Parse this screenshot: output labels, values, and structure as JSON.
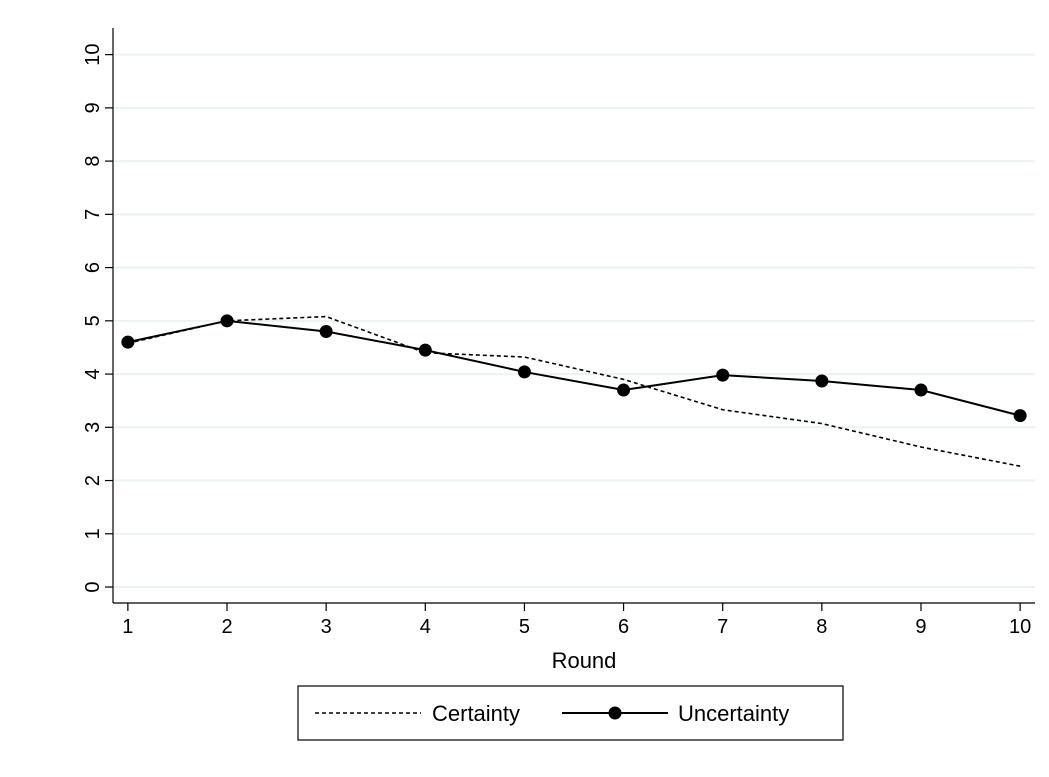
{
  "chart_data": {
    "type": "line",
    "title": "",
    "xlabel": "Round",
    "ylabel": "",
    "x": [
      1,
      2,
      3,
      4,
      5,
      6,
      7,
      8,
      9,
      10
    ],
    "xlim": [
      0.85,
      10.15
    ],
    "ylim": [
      -0.3,
      10.5
    ],
    "xticks": [
      "1",
      "2",
      "3",
      "4",
      "5",
      "6",
      "7",
      "8",
      "9",
      "10"
    ],
    "yticks": [
      "0",
      "1",
      "2",
      "3",
      "4",
      "5",
      "6",
      "7",
      "8",
      "9",
      "10"
    ],
    "grid": true,
    "legend_position": "bottom",
    "series": [
      {
        "name": "Certainty",
        "style": "dashed",
        "markers": false,
        "color": "#000000",
        "values": [
          4.58,
          5.0,
          5.08,
          4.4,
          4.32,
          3.9,
          3.33,
          3.07,
          2.63,
          2.27
        ]
      },
      {
        "name": "Uncertainty",
        "style": "solid",
        "markers": true,
        "color": "#000000",
        "values": [
          4.6,
          5.0,
          4.8,
          4.45,
          4.04,
          3.7,
          3.98,
          3.87,
          3.7,
          3.22
        ]
      }
    ],
    "colors": {
      "grid": "#eaf2f3",
      "axis": "#000000",
      "background": "#ffffff"
    }
  }
}
